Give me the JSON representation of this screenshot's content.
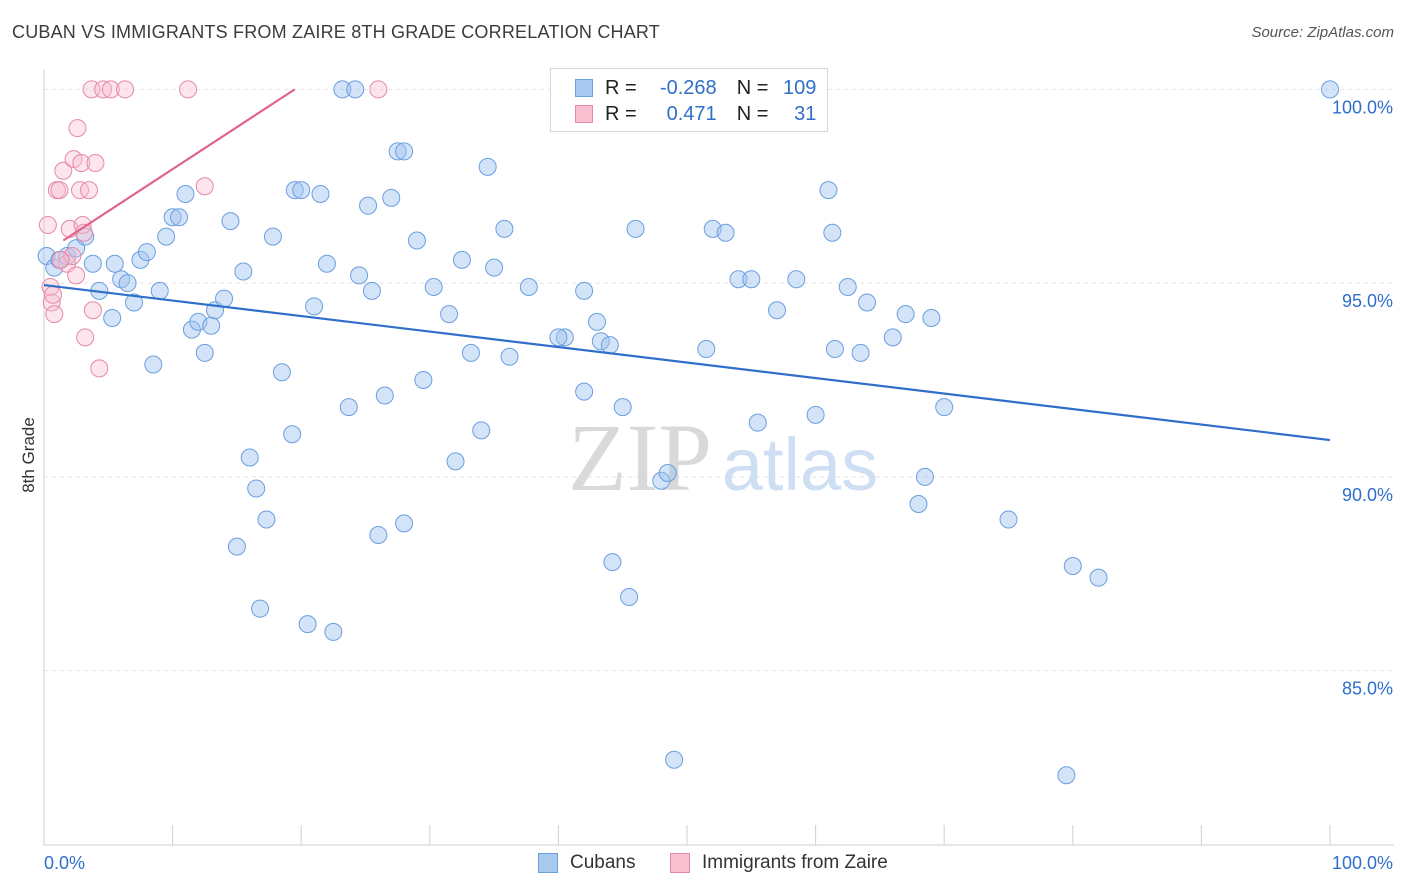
{
  "title": "CUBAN VS IMMIGRANTS FROM ZAIRE 8TH GRADE CORRELATION CHART",
  "source": "Source: ZipAtlas.com",
  "watermark": {
    "zip": "ZIP",
    "atlas": "atlas"
  },
  "legend": {
    "rows": [
      {
        "r_label": "R =",
        "r_value": "-0.268",
        "n_label": "N =",
        "n_value": "109",
        "color": "#a9c8f0",
        "border": "#6b9fe0"
      },
      {
        "r_label": "R =",
        "r_value": "0.471",
        "n_label": "N =",
        "n_value": "31",
        "color": "#f7bfd0",
        "border": "#e889a8"
      }
    ]
  },
  "bottom_legend": {
    "cubans": "Cubans",
    "zaire": "Immigrants from Zaire"
  },
  "chart_data": {
    "type": "scatter",
    "ylabel": "8th Grade",
    "xlim": [
      0,
      100
    ],
    "ylim": [
      80.5,
      100.5
    ],
    "x_tick_labels": [
      "0.0%",
      "100.0%"
    ],
    "y_tick_labels": [
      "100.0%",
      "95.0%",
      "90.0%",
      "85.0%"
    ],
    "y_tick_values": [
      100,
      95,
      90,
      85
    ],
    "grid": true,
    "series": [
      {
        "name": "Cubans",
        "color": "#6b9fe0",
        "fill": "rgba(160,196,240,0.45)",
        "trend": {
          "x": [
            0,
            100
          ],
          "y": [
            94.95,
            90.95
          ],
          "color": "#2f6fca"
        },
        "points": [
          [
            0.2,
            95.7
          ],
          [
            0.8,
            95.4
          ],
          [
            1.2,
            95.6
          ],
          [
            1.8,
            95.7
          ],
          [
            2.5,
            95.9
          ],
          [
            3.2,
            96.2
          ],
          [
            3.8,
            95.5
          ],
          [
            4.3,
            94.8
          ],
          [
            5.5,
            95.5
          ],
          [
            5.3,
            94.1
          ],
          [
            6.0,
            95.1
          ],
          [
            6.5,
            95.0
          ],
          [
            7.0,
            94.5
          ],
          [
            7.5,
            95.6
          ],
          [
            8.0,
            95.8
          ],
          [
            8.5,
            92.9
          ],
          [
            9.0,
            94.8
          ],
          [
            9.5,
            96.2
          ],
          [
            10.0,
            96.7
          ],
          [
            10.5,
            96.7
          ],
          [
            11.0,
            97.3
          ],
          [
            11.5,
            93.8
          ],
          [
            12.0,
            94.0
          ],
          [
            12.5,
            93.2
          ],
          [
            13.0,
            93.9
          ],
          [
            13.3,
            94.3
          ],
          [
            14.0,
            94.6
          ],
          [
            14.5,
            96.6
          ],
          [
            15.0,
            88.2
          ],
          [
            15.5,
            95.3
          ],
          [
            16.0,
            90.5
          ],
          [
            16.5,
            89.7
          ],
          [
            16.8,
            86.6
          ],
          [
            17.3,
            88.9
          ],
          [
            17.8,
            96.2
          ],
          [
            18.5,
            92.7
          ],
          [
            19.3,
            91.1
          ],
          [
            19.5,
            97.4
          ],
          [
            20.0,
            97.4
          ],
          [
            20.5,
            86.2
          ],
          [
            21.0,
            94.4
          ],
          [
            21.5,
            97.3
          ],
          [
            22.0,
            95.5
          ],
          [
            22.5,
            86.0
          ],
          [
            23.2,
            100.0
          ],
          [
            23.7,
            91.8
          ],
          [
            24.2,
            100.0
          ],
          [
            24.5,
            95.2
          ],
          [
            25.2,
            97.0
          ],
          [
            25.5,
            94.8
          ],
          [
            26.0,
            88.5
          ],
          [
            26.5,
            92.1
          ],
          [
            27.0,
            97.2
          ],
          [
            27.5,
            98.4
          ],
          [
            28.0,
            98.4
          ],
          [
            28.0,
            88.8
          ],
          [
            29.0,
            96.1
          ],
          [
            29.5,
            92.5
          ],
          [
            30.3,
            94.9
          ],
          [
            31.5,
            94.2
          ],
          [
            32.0,
            90.4
          ],
          [
            32.5,
            95.6
          ],
          [
            33.2,
            93.2
          ],
          [
            34.0,
            91.2
          ],
          [
            34.5,
            98.0
          ],
          [
            35.0,
            95.4
          ],
          [
            35.8,
            96.4
          ],
          [
            36.2,
            93.1
          ],
          [
            37.7,
            94.9
          ],
          [
            40.5,
            93.6
          ],
          [
            42.0,
            94.8
          ],
          [
            42.0,
            92.2
          ],
          [
            43.0,
            94.0
          ],
          [
            43.3,
            93.5
          ],
          [
            44.0,
            93.4
          ],
          [
            44.2,
            87.8
          ],
          [
            45.0,
            91.8
          ],
          [
            45.5,
            86.9
          ],
          [
            46.0,
            96.4
          ],
          [
            48.0,
            89.9
          ],
          [
            48.5,
            90.1
          ],
          [
            49.0,
            82.7
          ],
          [
            51.5,
            93.3
          ],
          [
            52.0,
            96.4
          ],
          [
            53.0,
            96.3
          ],
          [
            54.0,
            95.1
          ],
          [
            55.0,
            95.1
          ],
          [
            55.5,
            91.4
          ],
          [
            57.0,
            94.3
          ],
          [
            58.5,
            95.1
          ],
          [
            60.0,
            91.6
          ],
          [
            61.0,
            97.4
          ],
          [
            61.3,
            96.3
          ],
          [
            61.5,
            93.3
          ],
          [
            62.5,
            94.9
          ],
          [
            63.5,
            93.2
          ],
          [
            64.0,
            94.5
          ],
          [
            66.0,
            93.6
          ],
          [
            67.0,
            94.2
          ],
          [
            68.0,
            89.3
          ],
          [
            68.5,
            90.0
          ],
          [
            69.0,
            94.1
          ],
          [
            70.0,
            91.8
          ],
          [
            75.0,
            88.9
          ],
          [
            80.0,
            87.7
          ],
          [
            79.5,
            82.3
          ],
          [
            82.0,
            87.4
          ],
          [
            100.0,
            100.0
          ],
          [
            40.0,
            93.6
          ]
        ]
      },
      {
        "name": "Immigrants from Zaire",
        "color": "#e889a8",
        "fill": "rgba(247,191,208,0.40)",
        "trend": {
          "x": [
            1.5,
            19.5
          ],
          "y": [
            96.1,
            100.0
          ],
          "color": "#e0628f"
        },
        "points": [
          [
            0.3,
            96.5
          ],
          [
            0.5,
            94.9
          ],
          [
            0.6,
            94.5
          ],
          [
            0.7,
            94.7
          ],
          [
            0.8,
            94.2
          ],
          [
            1.0,
            97.4
          ],
          [
            1.2,
            97.4
          ],
          [
            1.5,
            97.9
          ],
          [
            1.8,
            95.5
          ],
          [
            2.0,
            96.4
          ],
          [
            2.2,
            95.7
          ],
          [
            2.3,
            98.2
          ],
          [
            2.5,
            95.2
          ],
          [
            2.6,
            99.0
          ],
          [
            2.8,
            97.4
          ],
          [
            2.9,
            98.1
          ],
          [
            3.0,
            96.5
          ],
          [
            3.1,
            96.3
          ],
          [
            3.2,
            93.6
          ],
          [
            3.5,
            97.4
          ],
          [
            3.7,
            100.0
          ],
          [
            3.8,
            94.3
          ],
          [
            4.0,
            98.1
          ],
          [
            4.3,
            92.8
          ],
          [
            4.6,
            100.0
          ],
          [
            5.2,
            100.0
          ],
          [
            6.3,
            100.0
          ],
          [
            11.2,
            100.0
          ],
          [
            12.5,
            97.5
          ],
          [
            26.0,
            100.0
          ],
          [
            1.3,
            95.6
          ]
        ]
      }
    ]
  }
}
